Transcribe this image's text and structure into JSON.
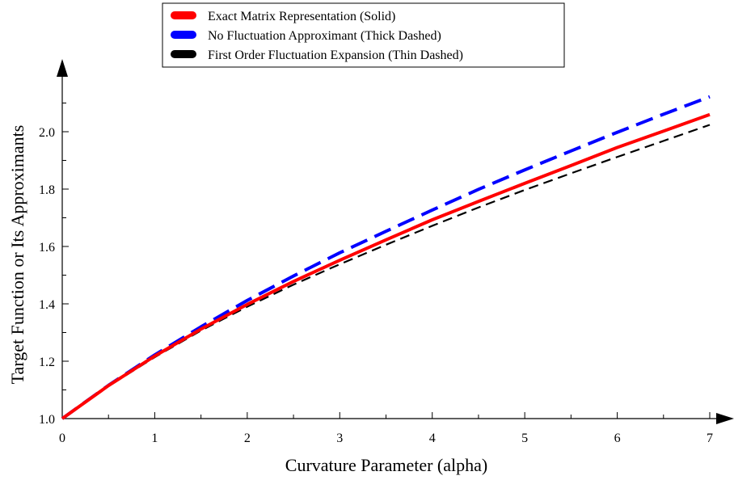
{
  "chart_data": {
    "type": "line",
    "xlabel": "Curvature Parameter (alpha)",
    "ylabel": "Target Function or Its Approximants",
    "xlim": [
      0,
      7
    ],
    "ylim": [
      1.0,
      2.2
    ],
    "x_ticks": [
      "0",
      "1",
      "2",
      "3",
      "4",
      "5",
      "6",
      "7"
    ],
    "y_ticks": [
      "1.0",
      "1.2",
      "1.4",
      "1.6",
      "1.8",
      "2.0"
    ],
    "grid": false,
    "legend_position": "top-center",
    "series": [
      {
        "name": "Exact Matrix Representation (Solid)",
        "color": "#ff0000",
        "style": "solid",
        "x": [
          0,
          0.5,
          1,
          1.5,
          2,
          2.5,
          3,
          3.5,
          4,
          4.5,
          5,
          5.5,
          6,
          6.5,
          7
        ],
        "y": [
          1.0,
          1.115,
          1.218,
          1.312,
          1.398,
          1.478,
          1.552,
          1.623,
          1.693,
          1.757,
          1.82,
          1.882,
          1.945,
          2.002,
          2.06
        ]
      },
      {
        "name": "No Fluctuation Approximant (Thick Dashed)",
        "color": "#0000ff",
        "style": "thick-dashed",
        "x": [
          0,
          0.5,
          1,
          1.5,
          2,
          2.5,
          3,
          3.5,
          4,
          4.5,
          5,
          5.5,
          6,
          6.5,
          7
        ],
        "y": [
          1.0,
          1.116,
          1.222,
          1.32,
          1.412,
          1.497,
          1.578,
          1.653,
          1.727,
          1.799,
          1.867,
          1.933,
          1.998,
          2.061,
          2.122
        ]
      },
      {
        "name": "First Order Fluctuation Expansion (Thin Dashed)",
        "color": "#000000",
        "style": "thin-dashed",
        "x": [
          0,
          0.5,
          1,
          1.5,
          2,
          2.5,
          3,
          3.5,
          4,
          4.5,
          5,
          5.5,
          6,
          6.5,
          7
        ],
        "y": [
          1.0,
          1.113,
          1.214,
          1.307,
          1.39,
          1.467,
          1.538,
          1.606,
          1.672,
          1.736,
          1.797,
          1.855,
          1.912,
          1.968,
          2.024
        ]
      }
    ]
  }
}
